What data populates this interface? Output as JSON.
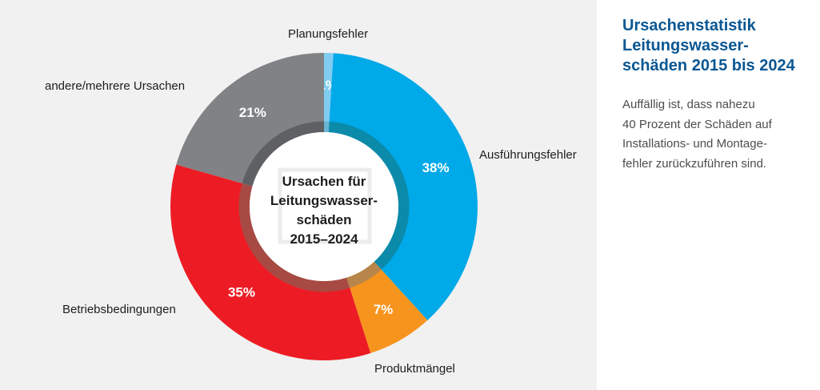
{
  "chart_data": {
    "type": "pie",
    "donut": true,
    "center_label": "Ursachen für\nLeitungswasser-\nschäden\n2015–2024",
    "start": "top",
    "direction": "clockwise",
    "slices": [
      {
        "label": "Planungsfehler",
        "value": 1,
        "value_label": "1%",
        "color": "#7fcdf0",
        "ring_color": "#6ab4d4"
      },
      {
        "label": "Ausführungsfehler",
        "value": 38,
        "value_label": "38%",
        "color": "#00a9e8",
        "ring_color": "#0b8aaa"
      },
      {
        "label": "Produktmängel",
        "value": 7,
        "value_label": "7%",
        "color": "#f7941d",
        "ring_color": "#b8864a"
      },
      {
        "label": "Betriebsbedingungen",
        "value": 35,
        "value_label": "35%",
        "color": "#ed1c24",
        "ring_color": "#a84a44"
      },
      {
        "label": "andere/mehrere Ursachen",
        "value": 21,
        "value_label": "21%",
        "color": "#808285",
        "ring_color": "#5e6064"
      }
    ]
  },
  "side": {
    "title": "Ursachenstatistik\nLeitungswasser-\nschäden 2015 bis 2024",
    "text": "Auffällig ist, dass nahezu\n40 Prozent der Schäden auf\nInstallations- und Montage-\nfehler zurückzuführen sind."
  }
}
